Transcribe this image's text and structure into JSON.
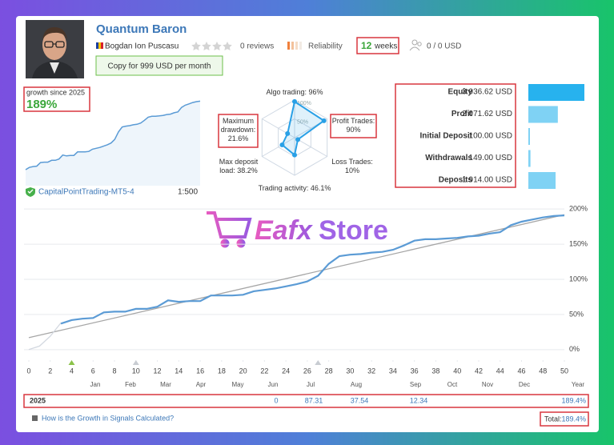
{
  "header": {
    "title": "Quantum Baron",
    "author": "Bogdan Ion Puscasu",
    "reviews": "0 reviews",
    "reliability": "Reliability",
    "weeks": {
      "value": 12,
      "label": "weeks"
    },
    "subscribers": "0 / 0 USD",
    "copy_button": "Copy for 999 USD per month"
  },
  "growth": {
    "label": "growth since 2025",
    "value": "189%"
  },
  "radar": {
    "labels": [
      "Algo trading:",
      "Profit Trades:",
      "Loss Trades:",
      "Trading activity:",
      "Max deposit load:",
      "Maximum drawdown:"
    ],
    "values": [
      96,
      90,
      10,
      46.1,
      38.2,
      21.6
    ],
    "value_labels": [
      "96%",
      "90%",
      "10%",
      "46.1%",
      "38.2%",
      "21.6%"
    ],
    "scale": [
      {
        "value": 100,
        "label": "100%"
      },
      {
        "value": 50,
        "label": "50%"
      }
    ]
  },
  "stats": {
    "rows": [
      {
        "label": "Equity",
        "value": 3936.62,
        "value_label": "3 936.62 USD"
      },
      {
        "label": "Profit",
        "value": 2071.62,
        "value_label": "2 071.62 USD"
      },
      {
        "label": "Initial Deposit",
        "value": 100.0,
        "value_label": "100.00 USD"
      },
      {
        "label": "Withdrawals",
        "value": 149.0,
        "value_label": "149.00 USD"
      },
      {
        "label": "Deposits",
        "value": 1914.0,
        "value_label": "1 914.00 USD"
      }
    ]
  },
  "account": {
    "server": "CapitalPointTrading-MT5-4",
    "leverage": "1:500"
  },
  "watermark": {
    "left": "Eafx",
    "right": "Store"
  },
  "chart_data": {
    "type": "line",
    "xlim": [
      0,
      50
    ],
    "ylim": [
      -15,
      207
    ],
    "xticks": [
      0,
      2,
      4,
      6,
      8,
      10,
      12,
      14,
      16,
      18,
      20,
      22,
      24,
      26,
      28,
      30,
      32,
      34,
      36,
      38,
      40,
      42,
      44,
      46,
      48,
      50
    ],
    "yticks": [
      {
        "value": 0,
        "label": "0%"
      },
      {
        "value": 50,
        "label": "50%"
      },
      {
        "value": 100,
        "label": "100%"
      },
      {
        "value": 150,
        "label": "150%"
      },
      {
        "value": 200,
        "label": "200%"
      }
    ],
    "grid": true,
    "months": [
      "Jan",
      "Feb",
      "Mar",
      "Apr",
      "May",
      "Jun",
      "Jul",
      "Aug",
      "Sep",
      "Oct",
      "Nov",
      "Dec"
    ],
    "x_end_label": "Year",
    "series": [
      {
        "color": "#d3d8e0",
        "x": [
          0,
          1,
          2,
          3
        ],
        "values": [
          0,
          5,
          19,
          38
        ]
      },
      {
        "color": "#5b9bd5",
        "x": [
          3,
          4,
          5,
          6,
          7,
          8,
          9,
          10,
          11,
          12,
          13,
          14,
          15,
          16,
          17,
          18,
          19,
          20,
          21,
          22,
          23,
          24,
          25,
          26,
          27,
          28,
          29,
          30,
          31,
          32,
          33,
          34,
          35,
          36,
          37,
          38,
          39,
          40,
          41,
          42,
          43,
          44,
          45,
          46,
          47,
          48,
          49,
          50
        ],
        "values": [
          37,
          42,
          44,
          45,
          53,
          54,
          54,
          58,
          58,
          61,
          70,
          68,
          69,
          69,
          77,
          77,
          77,
          78,
          83,
          85,
          87,
          90,
          93,
          97,
          105,
          122,
          133,
          135,
          136,
          138,
          139,
          142,
          148,
          155,
          157,
          157,
          158,
          159,
          161,
          162,
          165,
          167,
          177,
          182,
          185,
          188,
          190,
          191
        ]
      },
      {
        "color": "#a6a6a6",
        "x": [
          0,
          50
        ],
        "values": [
          17,
          192
        ]
      }
    ],
    "events": [
      {
        "x": 4,
        "color": "#8bc34a"
      },
      {
        "x": 10,
        "color": "#c8ccd2"
      },
      {
        "x": 27,
        "color": "#c8ccd2"
      }
    ]
  },
  "year_row": {
    "year": "2025",
    "months": [
      null,
      null,
      null,
      null,
      null,
      0,
      87.31,
      37.54,
      12.34,
      null,
      null,
      null
    ],
    "total": {
      "value": 189.4,
      "label": "189.4%"
    }
  },
  "footer": {
    "link": "How is the Growth in Signals Calculated?",
    "total_label": "Total:",
    "total": {
      "value": 189.4,
      "label": "189.4%"
    }
  }
}
